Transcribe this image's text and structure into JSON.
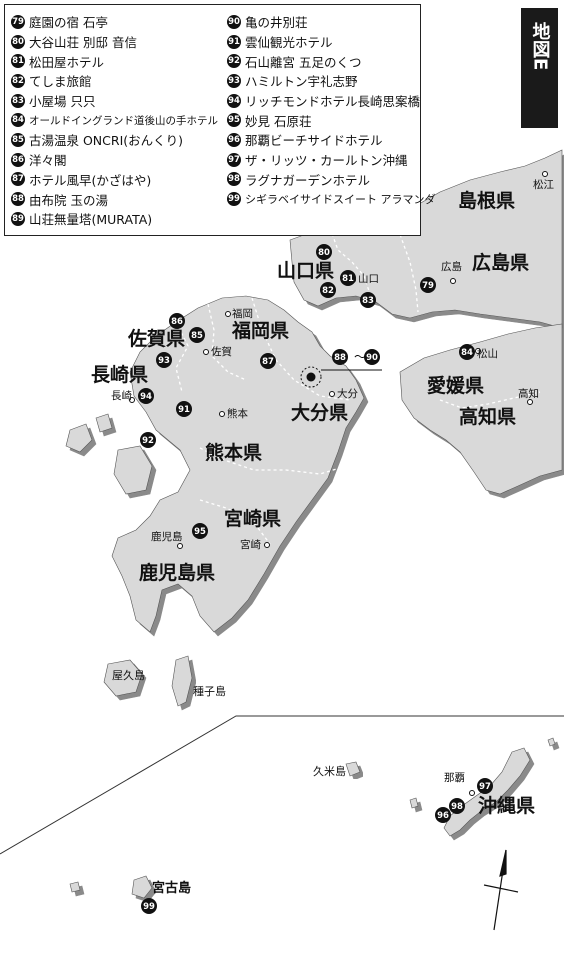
{
  "map_label": "地図E",
  "legend": [
    {
      "num": "79",
      "name": "庭園の宿 石亭"
    },
    {
      "num": "80",
      "name": "大谷山荘 別邸 音信"
    },
    {
      "num": "81",
      "name": "松田屋ホテル"
    },
    {
      "num": "82",
      "name": "てしま旅館"
    },
    {
      "num": "83",
      "name": "小屋場 只只"
    },
    {
      "num": "84",
      "name": "オールドイングランド道後山の手ホテル"
    },
    {
      "num": "85",
      "name": "古湯温泉 ONCRI(おんくり)"
    },
    {
      "num": "86",
      "name": "洋々閣"
    },
    {
      "num": "87",
      "name": "ホテル風早(かざはや)"
    },
    {
      "num": "88",
      "name": "由布院 玉の湯"
    },
    {
      "num": "89",
      "name": "山荘無量塔(MURATA)"
    },
    {
      "num": "90",
      "name": "亀の井別荘"
    },
    {
      "num": "91",
      "name": "雲仙観光ホテル"
    },
    {
      "num": "92",
      "name": "石山離宮 五足のくつ"
    },
    {
      "num": "93",
      "name": "ハミルトン宇礼志野"
    },
    {
      "num": "94",
      "name": "リッチモンドホテル長崎思案橋"
    },
    {
      "num": "95",
      "name": "妙見 石原荘"
    },
    {
      "num": "96",
      "name": "那覇ビーチサイドホテル"
    },
    {
      "num": "97",
      "name": "ザ・リッツ・カールトン沖縄"
    },
    {
      "num": "98",
      "name": "ラグナガーデンホテル"
    },
    {
      "num": "99",
      "name": "シギラベイサイドスイート アラマンダ"
    }
  ],
  "prefectures": {
    "shimane": "島根県",
    "yamaguchi": "山口県",
    "hiroshima": "広島県",
    "fukuoka": "福岡県",
    "saga": "佐賀県",
    "nagasaki": "長崎県",
    "oita": "大分県",
    "ehime": "愛媛県",
    "kochi": "高知県",
    "kumamoto": "熊本県",
    "miyazaki": "宮崎県",
    "kagoshima": "鹿児島県",
    "okinawa": "沖縄県"
  },
  "cities": {
    "matsue": "松江",
    "hiroshima": "広島",
    "yamaguchi": "山口",
    "fukuoka": "福岡",
    "saga": "佐賀",
    "matsuyama": "松山",
    "oita": "大分",
    "kochi": "高知",
    "nagasaki": "長崎",
    "kumamoto": "熊本",
    "kagoshima": "鹿児島",
    "miyazaki": "宮崎",
    "naha": "那覇"
  },
  "islands": {
    "yakushima": "屋久島",
    "tanegashima": "種子島",
    "kumejima": "久米島",
    "miyakojima": "宮古島"
  },
  "markers": {
    "m79": "79",
    "m80": "80",
    "m81": "81",
    "m82": "82",
    "m83": "83",
    "m84": "84",
    "m85": "85",
    "m86": "86",
    "m87": "87",
    "m88": "88",
    "m90": "90",
    "m91": "91",
    "m92": "92",
    "m93": "93",
    "m94": "94",
    "m95": "95",
    "m96": "96",
    "m97": "97",
    "m98": "98",
    "m99": "99"
  },
  "yufuin_range_sep": "〜",
  "colors": {
    "land": "#d9d9d9",
    "shadow": "#8a8a8a",
    "sea": "#ffffff",
    "marker": "#111111"
  }
}
